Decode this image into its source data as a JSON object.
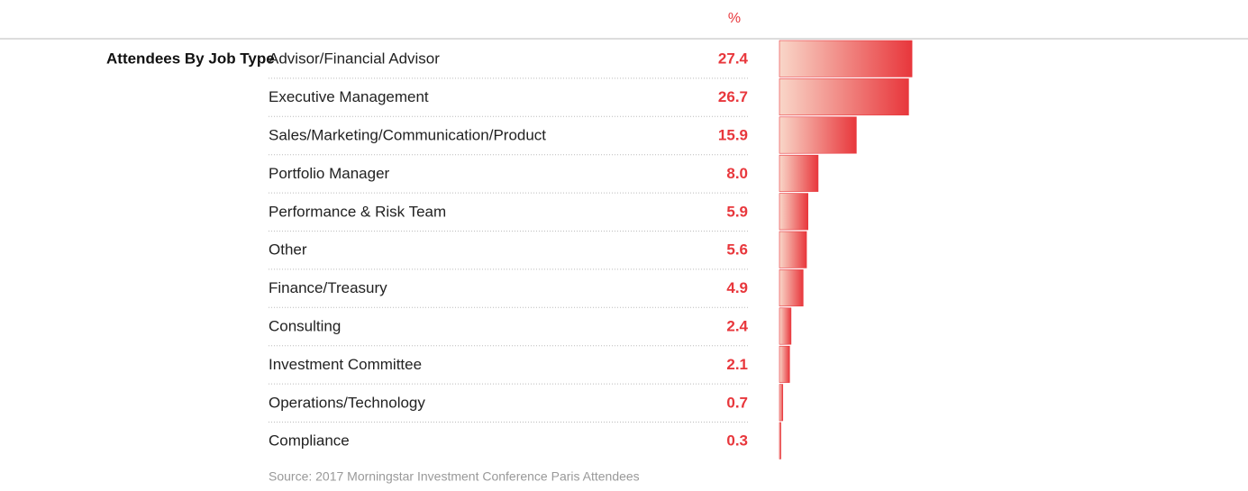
{
  "chart_data": {
    "type": "bar",
    "title": "Attendees By Job Type",
    "unit_label": "%",
    "categories": [
      "Advisor/Financial Advisor",
      "Executive Management",
      "Sales/Marketing/Communication/Product",
      "Portfolio Manager",
      "Performance & Risk Team",
      "Other",
      "Finance/Treasury",
      "Consulting",
      "Investment Committee",
      "Operations/Technology",
      "Compliance"
    ],
    "values": [
      27.4,
      26.7,
      15.9,
      8.0,
      5.9,
      5.6,
      4.9,
      2.4,
      2.1,
      0.7,
      0.3
    ],
    "value_labels": [
      "27.4",
      "26.7",
      "15.9",
      "8.0",
      "5.9",
      "5.6",
      "4.9",
      "2.4",
      "2.1",
      "0.7",
      "0.3"
    ],
    "color": "#e8373c",
    "source": "Source: 2017 Morningstar Investment Conference Paris Attendees"
  }
}
